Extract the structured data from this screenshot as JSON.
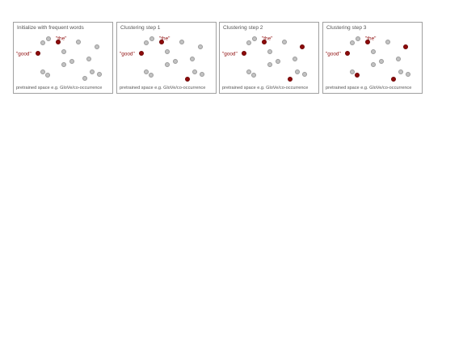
{
  "diagram": {
    "caption": "pretrained space e.g. GloVe/co-occurrence",
    "word_the": "\"the\"",
    "word_good": "\"good\"",
    "accent_color": "#8e0b0b",
    "dot_color": "#c2c2c2",
    "panels": [
      {
        "title": "Initialize with frequent words"
      },
      {
        "title": "Clustering step 1"
      },
      {
        "title": "Clustering step 2"
      },
      {
        "title": "Clustering step 3"
      }
    ]
  }
}
